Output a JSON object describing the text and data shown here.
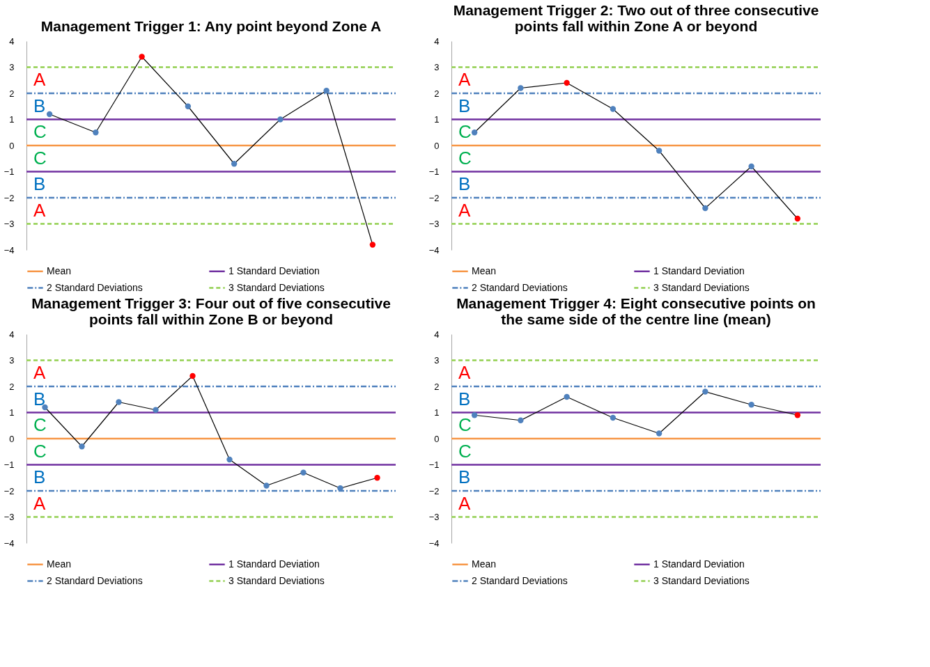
{
  "chart_data": [
    {
      "type": "line",
      "title": "Management Trigger 1: Any point beyond Zone A",
      "categories": [
        null,
        null,
        null,
        null,
        null,
        null,
        null,
        null
      ],
      "series": [
        {
          "color": "#000000",
          "values": [
            1.2,
            0.5,
            3.4,
            1.5,
            -0.7,
            1.0,
            2.1,
            -3.8
          ],
          "colors": [
            "#4f81bd",
            "#4f81bd",
            "#ff0000",
            "#4f81bd",
            "#4f81bd",
            "#4f81bd",
            "#4f81bd",
            "#ff0000"
          ]
        }
      ],
      "marker": "circle",
      "line_style": "solid",
      "ylim": [
        -4,
        4
      ],
      "yticks": [
        -4,
        -3,
        -2,
        -1,
        0,
        1,
        2,
        3,
        4
      ],
      "grid": false,
      "legend": "bottom",
      "tick_labels": "y",
      "ref_lines": [
        {
          "axis": "y",
          "value": 0,
          "label": "Mean",
          "color": "#f79646",
          "line_style": "solid"
        },
        {
          "axis": "y",
          "value": 1,
          "label": "1 Standard Deviation",
          "color": "#7030a0",
          "line_style": "solid"
        },
        {
          "axis": "y",
          "value": -1,
          "label": null,
          "color": "#7030a0",
          "line_style": "solid"
        },
        {
          "axis": "y",
          "value": 2,
          "label": "2 Standard Deviations",
          "color": "#4f81bd",
          "line_style": "dotted"
        },
        {
          "axis": "y",
          "value": -2,
          "label": null,
          "color": "#4f81bd",
          "line_style": "dotted"
        },
        {
          "axis": "y",
          "value": 3,
          "label": "3 Standard Deviations",
          "color": "#92d050",
          "line_style": "dashed"
        },
        {
          "axis": "y",
          "value": -3,
          "label": null,
          "color": "#92d050",
          "line_style": "dashed"
        }
      ],
      "annotations": [
        "A",
        "B",
        "C",
        "C",
        "B",
        "A"
      ]
    },
    {
      "type": "line",
      "title": "Management Trigger 2: Two out of three consecutive points fall within Zone A or beyond",
      "categories": [
        null,
        null,
        null,
        null,
        null,
        null,
        null,
        null
      ],
      "series": [
        {
          "color": "#000000",
          "values": [
            0.5,
            2.2,
            2.4,
            1.4,
            -0.2,
            -2.4,
            -0.8,
            -2.8
          ],
          "colors": [
            "#4f81bd",
            "#4f81bd",
            "#ff0000",
            "#4f81bd",
            "#4f81bd",
            "#4f81bd",
            "#4f81bd",
            "#ff0000"
          ]
        }
      ],
      "marker": "circle",
      "line_style": "solid",
      "ylim": [
        -4,
        4
      ],
      "yticks": [
        -4,
        -3,
        -2,
        -1,
        0,
        1,
        2,
        3,
        4
      ],
      "grid": false,
      "legend": "bottom",
      "tick_labels": "y",
      "ref_lines": [
        {
          "axis": "y",
          "value": 0,
          "label": "Mean",
          "color": "#f79646",
          "line_style": "solid"
        },
        {
          "axis": "y",
          "value": 1,
          "label": "1 Standard Deviation",
          "color": "#7030a0",
          "line_style": "solid"
        },
        {
          "axis": "y",
          "value": -1,
          "label": null,
          "color": "#7030a0",
          "line_style": "solid"
        },
        {
          "axis": "y",
          "value": 2,
          "label": "2 Standard Deviations",
          "color": "#4f81bd",
          "line_style": "dotted"
        },
        {
          "axis": "y",
          "value": -2,
          "label": null,
          "color": "#4f81bd",
          "line_style": "dotted"
        },
        {
          "axis": "y",
          "value": 3,
          "label": "3 Standard Deviations",
          "color": "#92d050",
          "line_style": "dashed"
        },
        {
          "axis": "y",
          "value": -3,
          "label": null,
          "color": "#92d050",
          "line_style": "dashed"
        }
      ],
      "annotations": [
        "A",
        "B",
        "C",
        "C",
        "B",
        "A"
      ]
    },
    {
      "type": "line",
      "title": "Management Trigger 3: Four out of five consecutive points fall within Zone B or beyond",
      "categories": [
        null,
        null,
        null,
        null,
        null,
        null,
        null,
        null,
        null,
        null
      ],
      "series": [
        {
          "color": "#000000",
          "values": [
            1.2,
            -0.3,
            1.4,
            1.1,
            2.4,
            -0.8,
            -1.8,
            -1.3,
            -1.9,
            -1.5
          ],
          "colors": [
            "#4f81bd",
            "#4f81bd",
            "#4f81bd",
            "#4f81bd",
            "#ff0000",
            "#4f81bd",
            "#4f81bd",
            "#4f81bd",
            "#4f81bd",
            "#ff0000"
          ]
        }
      ],
      "marker": "circle",
      "line_style": "solid",
      "ylim": [
        -4,
        4
      ],
      "yticks": [
        -4,
        -3,
        -2,
        -1,
        0,
        1,
        2,
        3,
        4
      ],
      "grid": false,
      "legend": "bottom",
      "tick_labels": "y",
      "ref_lines": [
        {
          "axis": "y",
          "value": 0,
          "label": "Mean",
          "color": "#f79646",
          "line_style": "solid"
        },
        {
          "axis": "y",
          "value": 1,
          "label": "1 Standard Deviation",
          "color": "#7030a0",
          "line_style": "solid"
        },
        {
          "axis": "y",
          "value": -1,
          "label": null,
          "color": "#7030a0",
          "line_style": "solid"
        },
        {
          "axis": "y",
          "value": 2,
          "label": "2 Standard Deviations",
          "color": "#4f81bd",
          "line_style": "dotted"
        },
        {
          "axis": "y",
          "value": -2,
          "label": null,
          "color": "#4f81bd",
          "line_style": "dotted"
        },
        {
          "axis": "y",
          "value": 3,
          "label": "3 Standard Deviations",
          "color": "#92d050",
          "line_style": "dashed"
        },
        {
          "axis": "y",
          "value": -3,
          "label": null,
          "color": "#92d050",
          "line_style": "dashed"
        }
      ],
      "annotations": [
        "A",
        "B",
        "C",
        "C",
        "B",
        "A"
      ]
    },
    {
      "type": "line",
      "title": "Management Trigger 4: Eight consecutive points on the same side of the centre line (mean)",
      "categories": [
        null,
        null,
        null,
        null,
        null,
        null,
        null,
        null
      ],
      "series": [
        {
          "color": "#000000",
          "values": [
            0.9,
            0.7,
            1.6,
            0.8,
            0.2,
            1.8,
            1.3,
            0.9
          ],
          "colors": [
            "#4f81bd",
            "#4f81bd",
            "#4f81bd",
            "#4f81bd",
            "#4f81bd",
            "#4f81bd",
            "#4f81bd",
            "#ff0000"
          ]
        }
      ],
      "marker": "circle",
      "line_style": "solid",
      "ylim": [
        -4,
        4
      ],
      "yticks": [
        -4,
        -3,
        -2,
        -1,
        0,
        1,
        2,
        3,
        4
      ],
      "grid": false,
      "legend": "bottom",
      "tick_labels": "y",
      "ref_lines": [
        {
          "axis": "y",
          "value": 0,
          "label": "Mean",
          "color": "#f79646",
          "line_style": "solid"
        },
        {
          "axis": "y",
          "value": 1,
          "label": "1 Standard Deviation",
          "color": "#7030a0",
          "line_style": "solid"
        },
        {
          "axis": "y",
          "value": -1,
          "label": null,
          "color": "#7030a0",
          "line_style": "solid"
        },
        {
          "axis": "y",
          "value": 2,
          "label": "2 Standard Deviations",
          "color": "#4f81bd",
          "line_style": "dotted"
        },
        {
          "axis": "y",
          "value": -2,
          "label": null,
          "color": "#4f81bd",
          "line_style": "dotted"
        },
        {
          "axis": "y",
          "value": 3,
          "label": "3 Standard Deviations",
          "color": "#92d050",
          "line_style": "dashed"
        },
        {
          "axis": "y",
          "value": -3,
          "label": null,
          "color": "#92d050",
          "line_style": "dashed"
        }
      ],
      "annotations": [
        "A",
        "B",
        "C",
        "C",
        "B",
        "A"
      ]
    }
  ]
}
